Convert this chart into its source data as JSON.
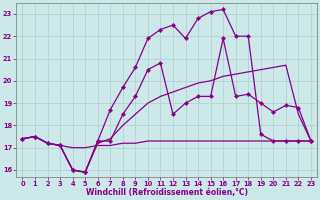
{
  "xlabel": "Windchill (Refroidissement éolien,°C)",
  "bg_color": "#cce8e8",
  "line_color": "#880088",
  "xlim": [
    -0.5,
    23.5
  ],
  "ylim": [
    15.7,
    23.5
  ],
  "yticks": [
    16,
    17,
    18,
    19,
    20,
    21,
    22,
    23
  ],
  "xticks": [
    0,
    1,
    2,
    3,
    4,
    5,
    6,
    7,
    8,
    9,
    10,
    11,
    12,
    13,
    14,
    15,
    16,
    17,
    18,
    19,
    20,
    21,
    22,
    23
  ],
  "series": [
    {
      "y": [
        17.4,
        17.5,
        17.2,
        17.1,
        17.0,
        17.0,
        17.1,
        17.1,
        17.2,
        17.2,
        17.3,
        17.3,
        17.3,
        17.3,
        17.3,
        17.3,
        17.3,
        17.3,
        17.3,
        17.3,
        17.3,
        17.3,
        17.3,
        17.3
      ],
      "markers": false
    },
    {
      "y": [
        17.4,
        17.5,
        17.2,
        17.1,
        16.0,
        15.9,
        17.2,
        17.4,
        18.0,
        18.5,
        19.0,
        19.3,
        19.5,
        19.7,
        19.9,
        20.0,
        20.2,
        20.3,
        20.4,
        20.5,
        20.6,
        20.7,
        18.5,
        17.3
      ],
      "markers": false
    },
    {
      "y": [
        17.4,
        17.5,
        17.2,
        17.1,
        16.0,
        15.9,
        17.3,
        17.3,
        18.5,
        19.3,
        20.5,
        20.8,
        18.5,
        19.0,
        19.3,
        19.3,
        21.9,
        19.3,
        19.4,
        19.0,
        18.6,
        18.9,
        18.8,
        17.3
      ],
      "markers": true
    },
    {
      "y": [
        17.4,
        17.5,
        17.2,
        17.1,
        16.0,
        15.9,
        17.3,
        18.7,
        19.7,
        20.6,
        21.9,
        22.3,
        22.5,
        21.9,
        22.8,
        23.1,
        23.2,
        22.0,
        22.0,
        17.6,
        17.3,
        17.3,
        17.3,
        17.3
      ],
      "markers": true
    }
  ]
}
